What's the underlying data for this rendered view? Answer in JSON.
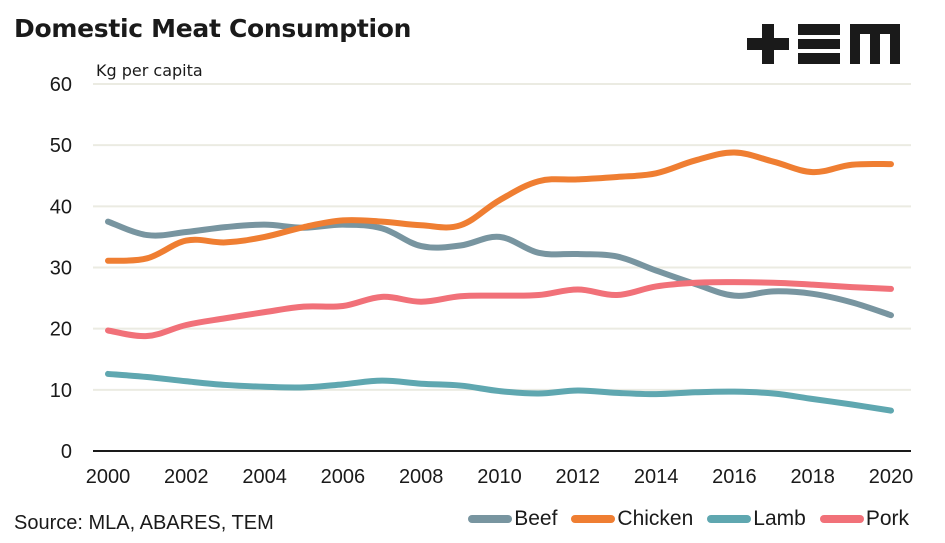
{
  "header": {
    "title": "Domestic Meat Consumption",
    "logo_text": "+EM"
  },
  "footer": {
    "source": "Source: MLA, ABARES, TEM"
  },
  "chart_data": {
    "type": "line",
    "title": "Domestic Meat Consumption",
    "xlabel": "",
    "ylabel": "Kg per capita",
    "x": [
      2000,
      2001,
      2002,
      2003,
      2004,
      2005,
      2006,
      2007,
      2008,
      2009,
      2010,
      2011,
      2012,
      2013,
      2014,
      2015,
      2016,
      2017,
      2018,
      2019,
      2020
    ],
    "xticks": [
      "2000",
      "2002",
      "2004",
      "2006",
      "2008",
      "2010",
      "2012",
      "2014",
      "2016",
      "2018",
      "2020"
    ],
    "yticks": [
      "0",
      "10",
      "20",
      "30",
      "40",
      "50",
      "60"
    ],
    "ylim": [
      0,
      60
    ],
    "xlim": [
      2000,
      2020
    ],
    "grid": true,
    "legend_position": "bottom-right",
    "series": [
      {
        "name": "Beef",
        "color": "#7895a0",
        "values": [
          37.5,
          35.3,
          35.8,
          36.6,
          37.0,
          36.5,
          37.0,
          36.4,
          33.5,
          33.6,
          35.0,
          32.4,
          32.2,
          31.8,
          29.5,
          27.3,
          25.4,
          26.1,
          25.7,
          24.3,
          22.2
        ]
      },
      {
        "name": "Chicken",
        "color": "#ef7e32",
        "values": [
          31.1,
          31.5,
          34.4,
          34.1,
          35.0,
          36.6,
          37.7,
          37.5,
          36.9,
          36.9,
          41.0,
          44.1,
          44.4,
          44.8,
          45.4,
          47.5,
          48.8,
          47.3,
          45.6,
          46.8,
          46.9
        ]
      },
      {
        "name": "Lamb",
        "color": "#5fa7b0",
        "values": [
          12.6,
          12.1,
          11.4,
          10.8,
          10.5,
          10.4,
          10.9,
          11.5,
          11.0,
          10.7,
          9.8,
          9.4,
          9.9,
          9.5,
          9.3,
          9.6,
          9.7,
          9.4,
          8.5,
          7.6,
          6.6
        ]
      },
      {
        "name": "Pork",
        "color": "#f17179",
        "values": [
          19.7,
          18.8,
          20.6,
          21.7,
          22.7,
          23.6,
          23.7,
          25.2,
          24.4,
          25.3,
          25.4,
          25.5,
          26.4,
          25.5,
          26.9,
          27.5,
          27.6,
          27.5,
          27.2,
          26.8,
          26.5
        ]
      }
    ]
  }
}
